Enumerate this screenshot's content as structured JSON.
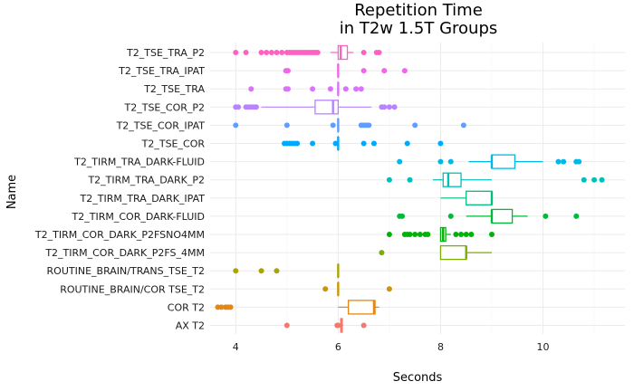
{
  "chart_data": {
    "type": "boxplot",
    "title": [
      "Repetition Time",
      "in T2w 1.5T Groups"
    ],
    "xlabel": "Seconds",
    "ylabel": "Name",
    "xlim": [
      3.5,
      11.6
    ],
    "x_ticks": [
      4,
      6,
      8,
      10
    ],
    "grid": true,
    "legend": "none",
    "categories": [
      "T2_TSE_TRA_P2",
      "T2_TSE_TRA_IPAT",
      "T2_TSE_TRA",
      "T2_TSE_COR_P2",
      "T2_TSE_COR_IPAT",
      "T2_TSE_COR",
      "T2_TIRM_TRA_DARK-FLUID",
      "T2_TIRM_TRA_DARK_P2",
      "T2_TIRM_TRA_DARK_IPAT",
      "T2_TIRM_COR_DARK-FLUID",
      "T2_TIRM_COR_DARK_P2FSNO4MM",
      "T2_TIRM_COR_DARK_P2FS_4MM",
      "ROUTINE_BRAIN/TRANS_TSE_T2",
      "ROUTINE_BRAIN/COR TSE_T2",
      "COR T2",
      "AX T2"
    ],
    "series": [
      {
        "name": "T2_TSE_TRA_P2",
        "color": "#FF61C3",
        "box": {
          "whisker_low": 5.85,
          "q1": 6.0,
          "median": 6.05,
          "q3": 6.18,
          "whisker_high": 6.3
        },
        "outliers": [
          4.0,
          4.2,
          4.5,
          4.6,
          4.7,
          4.8,
          4.9,
          5.0,
          5.05,
          5.1,
          5.15,
          5.2,
          5.25,
          5.3,
          5.35,
          5.4,
          5.45,
          5.5,
          5.55,
          5.6,
          6.5,
          6.75,
          6.8
        ]
      },
      {
        "name": "T2_TSE_TRA_IPAT",
        "color": "#F066EA",
        "box": {
          "whisker_low": 6.0,
          "q1": 6.0,
          "median": 6.0,
          "q3": 6.0,
          "whisker_high": 6.0
        },
        "outliers": [
          4.98,
          5.02,
          6.5,
          6.9,
          7.3
        ]
      },
      {
        "name": "T2_TSE_TRA",
        "color": "#DB72FB",
        "box": {
          "whisker_low": 6.0,
          "q1": 6.0,
          "median": 6.0,
          "q3": 6.0,
          "whisker_high": 6.0
        },
        "outliers": [
          4.3,
          4.98,
          5.02,
          5.5,
          5.85,
          6.15,
          6.35,
          6.45
        ]
      },
      {
        "name": "T2_TSE_COR_P2",
        "color": "#B983FF",
        "box": {
          "whisker_low": 4.5,
          "q1": 5.55,
          "median": 5.9,
          "q3": 6.0,
          "whisker_high": 6.65
        },
        "outliers": [
          4.0,
          4.05,
          4.2,
          4.25,
          4.3,
          4.35,
          4.4,
          6.85,
          6.9,
          7.0,
          7.1
        ]
      },
      {
        "name": "T2_TSE_COR_IPAT",
        "color": "#619CFF",
        "box": {
          "whisker_low": 6.0,
          "q1": 6.0,
          "median": 6.0,
          "q3": 6.0,
          "whisker_high": 6.0
        },
        "outliers": [
          4.0,
          5.0,
          5.9,
          6.45,
          6.5,
          6.55,
          6.6,
          7.5,
          8.45
        ]
      },
      {
        "name": "T2_TSE_COR",
        "color": "#00A9FF",
        "box": {
          "whisker_low": 6.0,
          "q1": 6.0,
          "median": 6.0,
          "q3": 6.0,
          "whisker_high": 6.0
        },
        "outliers": [
          4.95,
          5.0,
          5.05,
          5.1,
          5.15,
          5.2,
          5.5,
          5.95,
          6.5,
          6.7,
          7.35,
          8.0
        ]
      },
      {
        "name": "T2_TIRM_TRA_DARK-FLUID",
        "color": "#00B8E7",
        "box": {
          "whisker_low": 8.55,
          "q1": 9.0,
          "median": 9.0,
          "q3": 9.45,
          "whisker_high": 10.0
        },
        "outliers": [
          7.2,
          8.0,
          8.2,
          10.3,
          10.4,
          10.65,
          10.7
        ]
      },
      {
        "name": "T2_TIRM_TRA_DARK_P2",
        "color": "#00C0B8",
        "box": {
          "whisker_low": 7.85,
          "q1": 8.05,
          "median": 8.15,
          "q3": 8.4,
          "whisker_high": 9.0
        },
        "outliers": [
          7.0,
          7.4,
          10.8,
          11.0,
          11.15
        ]
      },
      {
        "name": "T2_TIRM_TRA_DARK_IPAT",
        "color": "#00BF7D",
        "box": {
          "whisker_low": 8.0,
          "q1": 8.5,
          "median": 9.0,
          "q3": 9.0,
          "whisker_high": 9.0
        },
        "outliers": []
      },
      {
        "name": "T2_TIRM_COR_DARK-FLUID",
        "color": "#00BA38",
        "box": {
          "whisker_low": 8.5,
          "q1": 9.0,
          "median": 9.0,
          "q3": 9.4,
          "whisker_high": 9.7
        },
        "outliers": [
          7.2,
          7.25,
          8.2,
          10.05,
          10.65
        ]
      },
      {
        "name": "T2_TIRM_COR_DARK_P2FSNO4MM",
        "color": "#00B208",
        "box": {
          "whisker_low": 8.0,
          "q1": 8.0,
          "median": 8.05,
          "q3": 8.1,
          "whisker_high": 8.2
        },
        "outliers": [
          7.0,
          7.3,
          7.35,
          7.4,
          7.5,
          7.6,
          7.7,
          7.75,
          8.3,
          8.4,
          8.5,
          8.6,
          9.0
        ]
      },
      {
        "name": "T2_TIRM_COR_DARK_P2FS_4MM",
        "color": "#7CAE00",
        "box": {
          "whisker_low": 8.0,
          "q1": 8.0,
          "median": 8.5,
          "q3": 8.5,
          "whisker_high": 9.0
        },
        "outliers": [
          6.85
        ]
      },
      {
        "name": "ROUTINE_BRAIN/TRANS_TSE_T2",
        "color": "#ABA300",
        "box": {
          "whisker_low": 6.0,
          "q1": 6.0,
          "median": 6.0,
          "q3": 6.0,
          "whisker_high": 6.0
        },
        "outliers": [
          4.0,
          4.5,
          4.8
        ]
      },
      {
        "name": "ROUTINE_BRAIN/COR TSE_T2",
        "color": "#CD9600",
        "box": {
          "whisker_low": 6.0,
          "q1": 6.0,
          "median": 6.0,
          "q3": 6.0,
          "whisker_high": 6.0
        },
        "outliers": [
          5.75,
          7.0
        ]
      },
      {
        "name": "COR T2",
        "color": "#E68613",
        "box": {
          "whisker_low": 6.0,
          "q1": 6.2,
          "median": 6.7,
          "q3": 6.72,
          "whisker_high": 6.8
        },
        "outliers": [
          3.65,
          3.72,
          3.8,
          3.85,
          3.9
        ]
      },
      {
        "name": "AX T2",
        "color": "#F8766D",
        "box": {
          "whisker_low": 6.0,
          "q1": 6.05,
          "median": 6.07,
          "q3": 6.08,
          "whisker_high": 6.1
        },
        "outliers": [
          5.0,
          5.98,
          6.0,
          6.5
        ]
      }
    ]
  }
}
